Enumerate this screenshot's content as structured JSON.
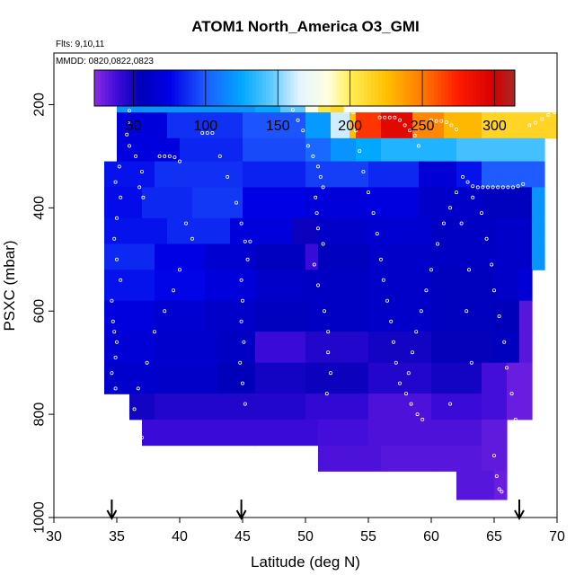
{
  "chart_data": {
    "type": "heatmap",
    "title": "ATOM1 North_America O3_GMI",
    "annotations": [
      "Flts: 9,10,11",
      "MMDD: 0820,0822,0823"
    ],
    "xlabel": "Latitude (deg N)",
    "ylabel": "PSXC (mbar)",
    "xlim": [
      30,
      70
    ],
    "ylim": [
      1000,
      100
    ],
    "x_ticks": [
      "30",
      "35",
      "40",
      "45",
      "50",
      "55",
      "60",
      "65",
      "70"
    ],
    "y_ticks": [
      "200",
      "400",
      "600",
      "800",
      "1000"
    ],
    "colorbar": {
      "min": 23,
      "max": 314,
      "ticks": [
        "50",
        "100",
        "150",
        "200",
        "250",
        "300"
      ],
      "stops": [
        {
          "v": 23,
          "c": "#8a2be2"
        },
        {
          "v": 40,
          "c": "#3a0ad8"
        },
        {
          "v": 55,
          "c": "#0000b8"
        },
        {
          "v": 75,
          "c": "#0000e6"
        },
        {
          "v": 100,
          "c": "#1e5cff"
        },
        {
          "v": 125,
          "c": "#00a8ff"
        },
        {
          "v": 145,
          "c": "#5cc8ff"
        },
        {
          "v": 165,
          "c": "#e4f4ff"
        },
        {
          "v": 185,
          "c": "#ffffe0"
        },
        {
          "v": 200,
          "c": "#ffee55"
        },
        {
          "v": 225,
          "c": "#ffc000"
        },
        {
          "v": 250,
          "c": "#ff7a00"
        },
        {
          "v": 275,
          "c": "#ff1a00"
        },
        {
          "v": 300,
          "c": "#d40000"
        },
        {
          "v": 314,
          "c": "#a52a2a"
        }
      ]
    },
    "flight_arrows_lat": [
      34.6,
      44.9,
      67
    ],
    "rows": [
      {
        "p_top": 170,
        "p_bot": 215,
        "cells": [
          [
            35,
            46,
            118
          ],
          [
            46,
            48,
            126
          ],
          [
            48,
            50,
            145
          ],
          [
            50,
            51,
            180
          ],
          [
            51,
            52,
            205
          ],
          [
            52,
            53,
            212
          ]
        ]
      },
      {
        "p_top": 215,
        "p_bot": 265,
        "cells": [
          [
            35,
            39,
            70
          ],
          [
            39,
            45,
            88
          ],
          [
            45,
            50,
            98
          ],
          [
            50,
            52,
            120
          ],
          [
            52,
            53.5,
            162
          ],
          [
            53.5,
            54,
            225
          ],
          [
            54,
            56,
            268
          ],
          [
            56,
            58.5,
            292
          ],
          [
            58.5,
            61,
            245
          ],
          [
            61,
            64,
            228
          ],
          [
            64,
            70,
            214
          ]
        ]
      },
      {
        "p_top": 265,
        "p_bot": 310,
        "cells": [
          [
            35,
            40,
            72
          ],
          [
            40,
            45,
            85
          ],
          [
            45,
            50,
            95
          ],
          [
            50,
            52,
            104
          ],
          [
            52,
            54,
            118
          ],
          [
            54,
            56,
            125
          ],
          [
            56,
            62,
            132
          ],
          [
            62,
            69,
            140
          ]
        ]
      },
      {
        "p_top": 310,
        "p_bot": 360,
        "cells": [
          [
            34,
            38,
            80
          ],
          [
            38,
            45,
            88
          ],
          [
            45,
            50,
            84
          ],
          [
            50,
            55,
            92
          ],
          [
            55,
            59,
            86
          ],
          [
            59,
            62,
            68
          ],
          [
            62,
            64,
            80
          ],
          [
            64,
            69,
            100
          ]
        ]
      },
      {
        "p_top": 360,
        "p_bot": 420,
        "cells": [
          [
            34,
            37,
            78
          ],
          [
            37,
            41,
            86
          ],
          [
            41,
            45,
            90
          ],
          [
            45,
            50,
            74
          ],
          [
            50,
            55,
            70
          ],
          [
            55,
            59,
            72
          ],
          [
            59,
            64,
            62
          ],
          [
            64,
            68,
            58
          ],
          [
            68,
            69,
            118
          ]
        ]
      },
      {
        "p_top": 420,
        "p_bot": 470,
        "cells": [
          [
            34,
            39,
            80
          ],
          [
            39,
            44,
            86
          ],
          [
            44,
            49,
            70
          ],
          [
            49,
            51,
            52
          ],
          [
            51,
            55,
            62
          ],
          [
            55,
            60,
            66
          ],
          [
            60,
            65,
            60
          ],
          [
            65,
            68,
            62
          ],
          [
            68,
            69,
            118
          ]
        ]
      },
      {
        "p_top": 470,
        "p_bot": 520,
        "cells": [
          [
            34,
            38,
            86
          ],
          [
            38,
            42,
            74
          ],
          [
            42,
            46,
            66
          ],
          [
            46,
            50,
            58
          ],
          [
            50,
            51,
            40
          ],
          [
            51,
            55,
            58
          ],
          [
            55,
            60,
            62
          ],
          [
            60,
            65,
            60
          ],
          [
            65,
            68,
            62
          ],
          [
            68,
            69,
            118
          ]
        ]
      },
      {
        "p_top": 520,
        "p_bot": 580,
        "cells": [
          [
            34,
            38,
            80
          ],
          [
            38,
            42,
            76
          ],
          [
            42,
            46,
            70
          ],
          [
            46,
            50,
            62
          ],
          [
            50,
            55,
            60
          ],
          [
            55,
            60,
            62
          ],
          [
            60,
            65,
            58
          ],
          [
            65,
            67,
            62
          ],
          [
            67,
            68,
            68
          ]
        ]
      },
      {
        "p_top": 580,
        "p_bot": 640,
        "cells": [
          [
            34,
            38,
            72
          ],
          [
            38,
            42,
            66
          ],
          [
            42,
            46,
            62
          ],
          [
            46,
            50,
            58
          ],
          [
            50,
            55,
            60
          ],
          [
            55,
            60,
            62
          ],
          [
            60,
            65,
            58
          ],
          [
            65,
            67,
            56
          ],
          [
            67,
            68,
            34
          ]
        ]
      },
      {
        "p_top": 640,
        "p_bot": 700,
        "cells": [
          [
            34,
            38,
            68
          ],
          [
            38,
            43,
            64
          ],
          [
            43,
            46,
            60
          ],
          [
            46,
            50,
            40
          ],
          [
            50,
            55,
            46
          ],
          [
            55,
            60,
            50
          ],
          [
            60,
            65,
            54
          ],
          [
            65,
            67,
            58
          ],
          [
            67,
            68,
            34
          ]
        ]
      },
      {
        "p_top": 700,
        "p_bot": 760,
        "cells": [
          [
            34,
            38,
            64
          ],
          [
            38,
            43,
            62
          ],
          [
            43,
            46,
            56
          ],
          [
            46,
            50,
            50
          ],
          [
            50,
            55,
            52
          ],
          [
            55,
            60,
            46
          ],
          [
            60,
            64,
            50
          ],
          [
            64,
            66,
            38
          ],
          [
            66,
            68,
            30
          ]
        ]
      },
      {
        "p_top": 760,
        "p_bot": 810,
        "cells": [
          [
            36,
            38,
            50
          ],
          [
            38,
            45,
            46
          ],
          [
            45,
            50,
            46
          ],
          [
            50,
            55,
            42
          ],
          [
            55,
            60,
            36
          ],
          [
            60,
            64,
            40
          ],
          [
            64,
            66,
            38
          ],
          [
            66,
            68,
            30
          ]
        ]
      },
      {
        "p_top": 810,
        "p_bot": 860,
        "cells": [
          [
            37,
            46,
            40
          ],
          [
            46,
            51,
            40
          ],
          [
            51,
            55,
            38
          ],
          [
            55,
            60,
            36
          ],
          [
            60,
            64,
            36
          ],
          [
            64,
            66,
            32
          ]
        ]
      },
      {
        "p_top": 860,
        "p_bot": 910,
        "cells": [
          [
            51,
            56,
            36
          ],
          [
            56,
            60,
            34
          ],
          [
            60,
            64,
            34
          ],
          [
            64,
            66,
            32
          ]
        ]
      },
      {
        "p_top": 910,
        "p_bot": 965,
        "cells": [
          [
            62,
            65,
            34
          ],
          [
            65,
            66,
            30
          ]
        ]
      }
    ],
    "obs_points": [
      [
        35.3,
        186
      ],
      [
        35.7,
        186
      ],
      [
        36.1,
        186
      ],
      [
        36.5,
        186
      ],
      [
        36.9,
        186
      ],
      [
        36.0,
        212
      ],
      [
        35.9,
        235
      ],
      [
        35.8,
        258
      ],
      [
        36.0,
        280
      ],
      [
        36.5,
        300
      ],
      [
        37.0,
        330
      ],
      [
        36.8,
        360
      ],
      [
        37.1,
        380
      ],
      [
        35.2,
        320
      ],
      [
        34.9,
        350
      ],
      [
        35.3,
        380
      ],
      [
        35.0,
        420
      ],
      [
        34.8,
        460
      ],
      [
        35.0,
        500
      ],
      [
        35.3,
        540
      ],
      [
        34.6,
        580
      ],
      [
        34.7,
        620
      ],
      [
        34.8,
        640
      ],
      [
        35.0,
        660
      ],
      [
        34.9,
        690
      ],
      [
        34.6,
        720
      ],
      [
        34.9,
        750
      ],
      [
        35.2,
        770
      ],
      [
        38.4,
        300
      ],
      [
        38.8,
        300
      ],
      [
        39.2,
        300
      ],
      [
        39.6,
        302
      ],
      [
        40.0,
        310
      ],
      [
        41.8,
        255
      ],
      [
        42.2,
        255
      ],
      [
        42.6,
        255
      ],
      [
        43.2,
        300
      ],
      [
        43.8,
        340
      ],
      [
        44.5,
        390
      ],
      [
        44.9,
        430
      ],
      [
        45.2,
        465
      ],
      [
        45.6,
        465
      ],
      [
        45.4,
        500
      ],
      [
        44.9,
        540
      ],
      [
        45.0,
        580
      ],
      [
        44.9,
        620
      ],
      [
        45.1,
        660
      ],
      [
        44.8,
        700
      ],
      [
        45.0,
        740
      ],
      [
        45.2,
        780
      ],
      [
        40.5,
        430
      ],
      [
        41.0,
        460
      ],
      [
        40.0,
        520
      ],
      [
        39.5,
        560
      ],
      [
        38.8,
        600
      ],
      [
        38.0,
        640
      ],
      [
        37.4,
        700
      ],
      [
        36.7,
        750
      ],
      [
        36.4,
        790
      ],
      [
        37.0,
        845
      ],
      [
        48.0,
        200
      ],
      [
        48.5,
        200
      ],
      [
        49.0,
        210
      ],
      [
        49.4,
        230
      ],
      [
        49.8,
        250
      ],
      [
        50.2,
        280
      ],
      [
        50.6,
        300
      ],
      [
        51.0,
        320
      ],
      [
        51.2,
        340
      ],
      [
        51.4,
        360
      ],
      [
        50.8,
        380
      ],
      [
        50.9,
        410
      ],
      [
        51.0,
        440
      ],
      [
        51.4,
        470
      ],
      [
        50.7,
        510
      ],
      [
        51.0,
        550
      ],
      [
        51.5,
        600
      ],
      [
        51.8,
        640
      ],
      [
        51.8,
        680
      ],
      [
        52.0,
        720
      ],
      [
        51.7,
        760
      ],
      [
        53.8,
        215
      ],
      [
        54.0,
        250
      ],
      [
        54.3,
        290
      ],
      [
        54.6,
        330
      ],
      [
        55.0,
        370
      ],
      [
        55.4,
        410
      ],
      [
        55.7,
        450
      ],
      [
        56.0,
        500
      ],
      [
        56.2,
        540
      ],
      [
        56.5,
        580
      ],
      [
        56.8,
        620
      ],
      [
        57.0,
        660
      ],
      [
        57.2,
        700
      ],
      [
        57.5,
        740
      ],
      [
        55.9,
        225
      ],
      [
        56.3,
        225
      ],
      [
        56.7,
        225
      ],
      [
        57.1,
        225
      ],
      [
        57.5,
        230
      ],
      [
        57.9,
        240
      ],
      [
        58.3,
        250
      ],
      [
        58.7,
        260
      ],
      [
        59.0,
        280
      ],
      [
        60.0,
        230
      ],
      [
        60.4,
        232
      ],
      [
        60.8,
        232
      ],
      [
        61.2,
        234
      ],
      [
        61.6,
        240
      ],
      [
        62.0,
        248
      ],
      [
        62.5,
        340
      ],
      [
        62.9,
        350
      ],
      [
        63.3,
        358
      ],
      [
        63.7,
        360
      ],
      [
        64.1,
        360
      ],
      [
        64.5,
        360
      ],
      [
        64.9,
        360
      ],
      [
        65.3,
        360
      ],
      [
        65.7,
        360
      ],
      [
        66.1,
        360
      ],
      [
        66.5,
        360
      ],
      [
        66.9,
        358
      ],
      [
        67.3,
        354
      ],
      [
        62.0,
        370
      ],
      [
        61.5,
        400
      ],
      [
        61.0,
        430
      ],
      [
        60.5,
        470
      ],
      [
        60.0,
        520
      ],
      [
        59.6,
        560
      ],
      [
        59.2,
        600
      ],
      [
        58.8,
        640
      ],
      [
        58.5,
        680
      ],
      [
        58.2,
        720
      ],
      [
        58.0,
        760
      ],
      [
        58.4,
        780
      ],
      [
        58.9,
        800
      ],
      [
        59.3,
        810
      ],
      [
        64.0,
        410
      ],
      [
        64.4,
        460
      ],
      [
        64.8,
        510
      ],
      [
        65.0,
        560
      ],
      [
        65.4,
        610
      ],
      [
        65.8,
        660
      ],
      [
        66.0,
        710
      ],
      [
        66.4,
        760
      ],
      [
        66.7,
        810
      ],
      [
        66.9,
        850
      ],
      [
        67.2,
        860
      ],
      [
        65.0,
        880
      ],
      [
        65.2,
        920
      ],
      [
        65.4,
        945
      ],
      [
        65.6,
        950
      ],
      [
        67.8,
        240
      ],
      [
        68.3,
        235
      ],
      [
        68.8,
        228
      ],
      [
        69.3,
        220
      ],
      [
        69.8,
        215
      ],
      [
        63.3,
        380
      ],
      [
        62.4,
        430
      ],
      [
        63.0,
        520
      ],
      [
        62.8,
        600
      ],
      [
        63.2,
        700
      ],
      [
        61.5,
        780
      ]
    ]
  }
}
